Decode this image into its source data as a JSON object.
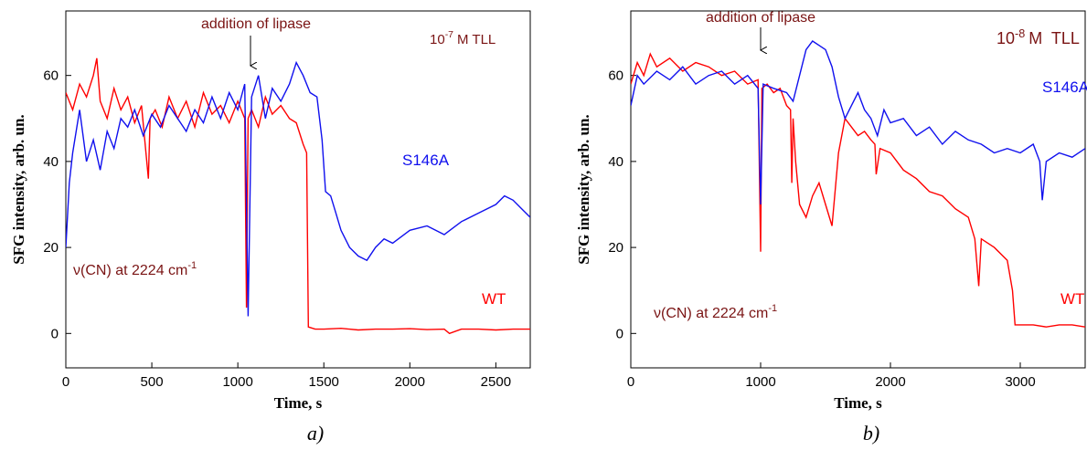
{
  "chart_data": [
    {
      "type": "line",
      "ylabel": "SFG intensity, arb. un.",
      "xlabel": "Time, s",
      "caption": "a)",
      "annotation": "addition of lipase",
      "concentration": {
        "base": "10",
        "exponent": "-7",
        "unit": "M TLL"
      },
      "band": {
        "text": "ν(CN) at 2224 cm",
        "exponent": "-1"
      },
      "xlim": [
        0,
        2700
      ],
      "xticks": [
        0,
        500,
        1000,
        1500,
        2000,
        2500
      ],
      "ylim": [
        -8,
        75
      ],
      "yticks": [
        0,
        20,
        40,
        60
      ],
      "series": [
        {
          "name": "WT",
          "color": "#ff0000",
          "x": [
            0,
            40,
            80,
            120,
            160,
            180,
            200,
            240,
            280,
            320,
            360,
            400,
            440,
            480,
            490,
            520,
            560,
            600,
            650,
            700,
            750,
            800,
            850,
            900,
            950,
            1000,
            1040,
            1050,
            1060,
            1080,
            1120,
            1160,
            1200,
            1250,
            1300,
            1340,
            1380,
            1400,
            1410,
            1450,
            1500,
            1600,
            1700,
            1800,
            1900,
            2000,
            2100,
            2200,
            2230,
            2300,
            2400,
            2500,
            2600,
            2700
          ],
          "values": [
            56,
            52,
            58,
            55,
            60,
            64,
            54,
            50,
            57,
            52,
            55,
            49,
            53,
            36,
            50,
            52,
            48,
            55,
            50,
            54,
            48,
            56,
            51,
            53,
            49,
            54,
            50,
            6,
            50,
            52,
            48,
            55,
            51,
            53,
            50,
            49,
            44,
            42,
            1.5,
            1,
            1,
            1.2,
            0.8,
            1,
            1,
            1.1,
            0.9,
            1,
            0,
            1,
            1,
            0.8,
            1,
            1
          ]
        },
        {
          "name": "S146A",
          "color": "#1010ee",
          "x": [
            0,
            20,
            40,
            80,
            120,
            160,
            200,
            240,
            280,
            320,
            360,
            400,
            450,
            500,
            550,
            600,
            650,
            700,
            750,
            800,
            850,
            900,
            950,
            1000,
            1040,
            1060,
            1080,
            1120,
            1160,
            1200,
            1250,
            1300,
            1340,
            1380,
            1420,
            1460,
            1490,
            1510,
            1540,
            1570,
            1600,
            1650,
            1700,
            1750,
            1800,
            1850,
            1900,
            2000,
            2100,
            2200,
            2300,
            2400,
            2500,
            2550,
            2600,
            2650,
            2700
          ],
          "values": [
            20,
            35,
            42,
            52,
            40,
            45,
            38,
            47,
            43,
            50,
            48,
            52,
            46,
            51,
            48,
            53,
            50,
            47,
            52,
            49,
            55,
            50,
            56,
            52,
            58,
            4,
            55,
            60,
            50,
            57,
            54,
            58,
            63,
            60,
            56,
            55,
            45,
            33,
            32,
            28,
            24,
            20,
            18,
            17,
            20,
            22,
            21,
            24,
            25,
            23,
            26,
            28,
            30,
            32,
            31,
            29,
            27
          ]
        }
      ]
    },
    {
      "type": "line",
      "ylabel": "SFG intensity, arb. un.",
      "xlabel": "Time, s",
      "caption": "b)",
      "annotation": "addition of lipase",
      "concentration": {
        "base": "10",
        "exponent": "-8",
        "unit": "M  TLL"
      },
      "band": {
        "text": "ν(CN) at 2224 cm",
        "exponent": "-1"
      },
      "xlim": [
        0,
        3500
      ],
      "xticks": [
        0,
        1000,
        2000,
        3000
      ],
      "ylim": [
        -8,
        75
      ],
      "yticks": [
        0,
        20,
        40,
        60
      ],
      "series": [
        {
          "name": "WT",
          "color": "#ff0000",
          "x": [
            0,
            50,
            100,
            150,
            200,
            300,
            400,
            500,
            600,
            700,
            800,
            900,
            980,
            1000,
            1010,
            1050,
            1100,
            1150,
            1200,
            1230,
            1240,
            1250,
            1270,
            1300,
            1350,
            1400,
            1450,
            1500,
            1550,
            1600,
            1650,
            1700,
            1750,
            1800,
            1850,
            1880,
            1890,
            1920,
            2000,
            2100,
            2200,
            2300,
            2400,
            2500,
            2600,
            2650,
            2680,
            2700,
            2800,
            2900,
            2940,
            2960,
            3000,
            3100,
            3200,
            3300,
            3400,
            3500
          ],
          "values": [
            58,
            63,
            60,
            65,
            62,
            64,
            61,
            63,
            62,
            60,
            61,
            58,
            59,
            19,
            57,
            58,
            56,
            57,
            53,
            52,
            35,
            50,
            40,
            30,
            27,
            32,
            35,
            30,
            25,
            42,
            50,
            48,
            46,
            47,
            45,
            44,
            37,
            43,
            42,
            38,
            36,
            33,
            32,
            29,
            27,
            22,
            11,
            22,
            20,
            17,
            10,
            2,
            2,
            2,
            1.5,
            2,
            2,
            1.5
          ]
        },
        {
          "name": "S146A",
          "color": "#1010ee",
          "x": [
            0,
            50,
            100,
            200,
            300,
            400,
            500,
            600,
            700,
            800,
            900,
            980,
            1000,
            1020,
            1100,
            1200,
            1250,
            1300,
            1350,
            1400,
            1450,
            1500,
            1550,
            1600,
            1650,
            1700,
            1750,
            1800,
            1850,
            1900,
            1950,
            2000,
            2100,
            2200,
            2300,
            2400,
            2500,
            2600,
            2700,
            2800,
            2900,
            3000,
            3100,
            3150,
            3170,
            3200,
            3300,
            3400,
            3500
          ],
          "values": [
            53,
            60,
            58,
            61,
            59,
            62,
            58,
            60,
            61,
            58,
            60,
            57,
            30,
            58,
            57,
            56,
            54,
            60,
            66,
            68,
            67,
            66,
            62,
            55,
            50,
            53,
            56,
            52,
            50,
            46,
            52,
            49,
            50,
            46,
            48,
            44,
            47,
            45,
            44,
            42,
            43,
            42,
            44,
            40,
            31,
            40,
            42,
            41,
            43
          ]
        }
      ]
    }
  ]
}
